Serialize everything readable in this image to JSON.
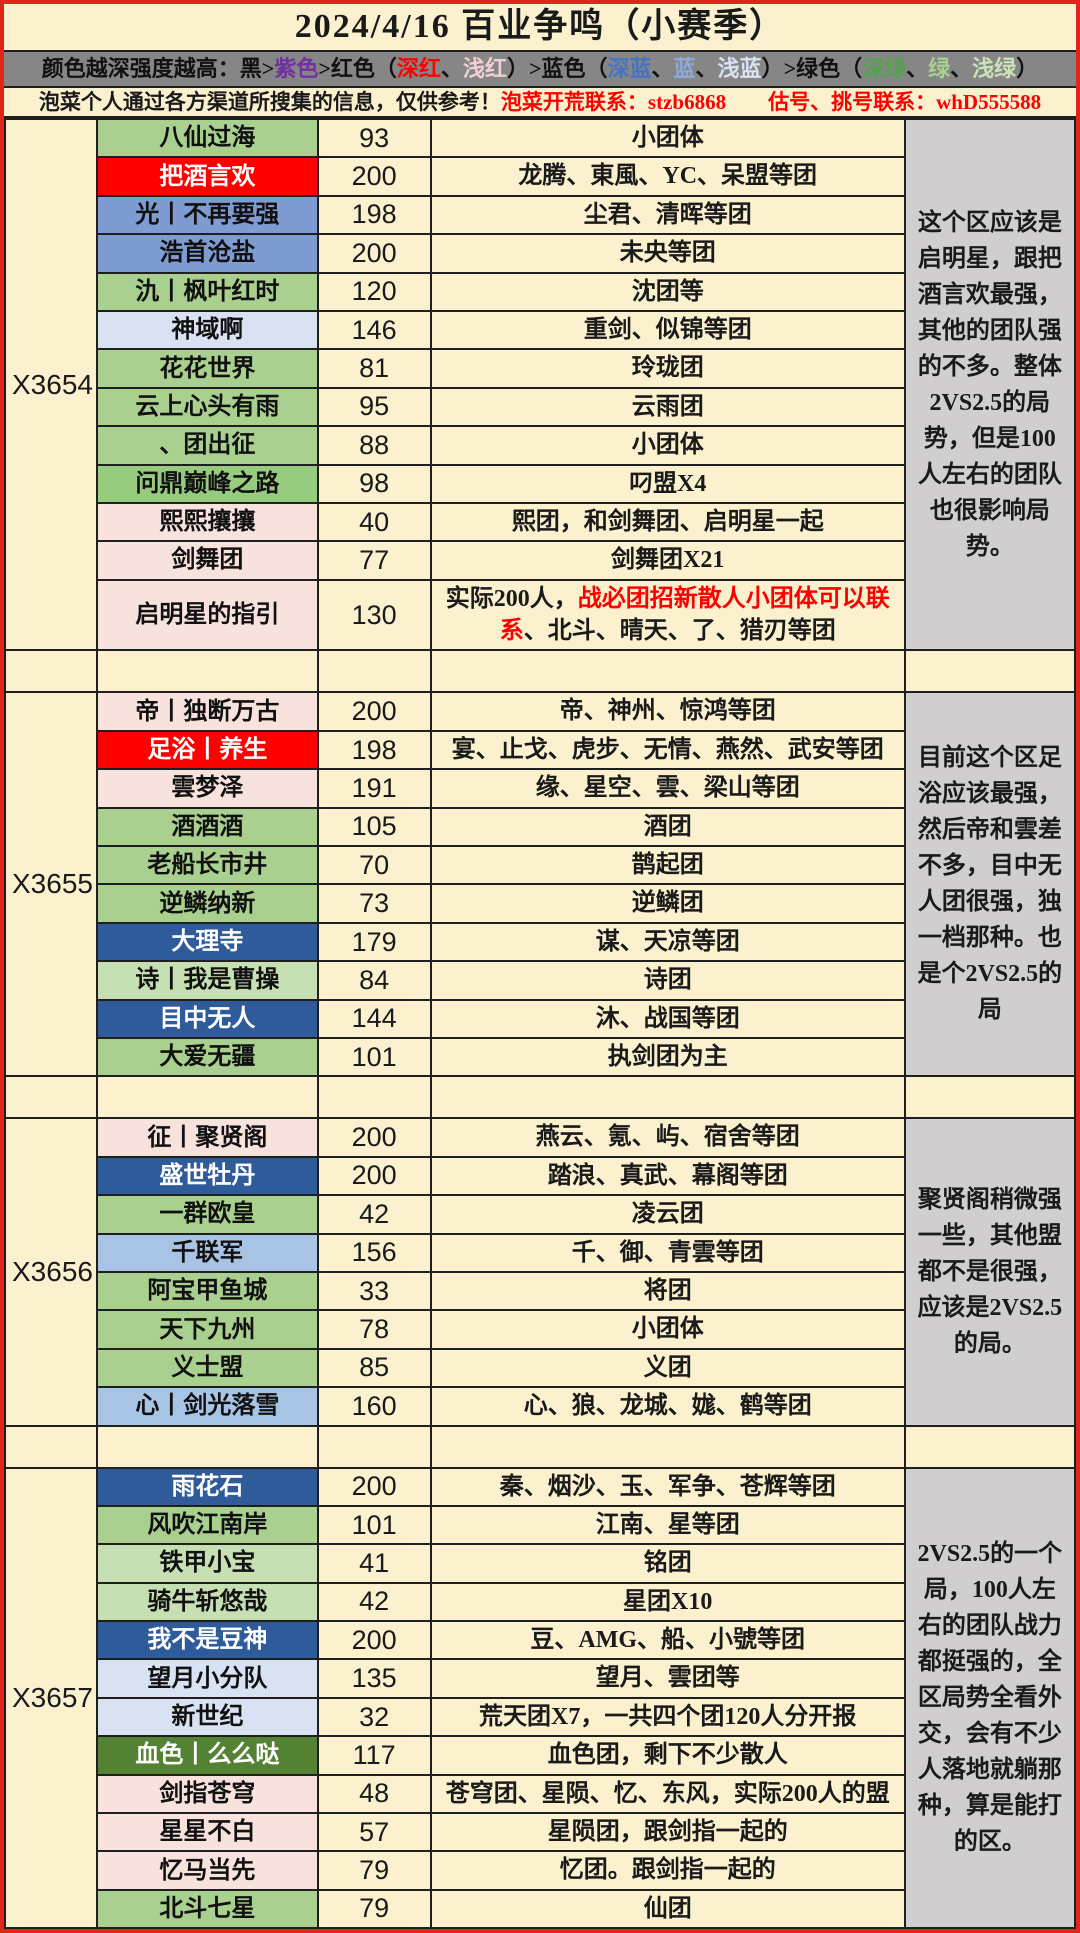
{
  "title": "2024/4/16 百业争鸣（小赛季）",
  "legend": {
    "segments": [
      {
        "t": "颜色越深强度越高：黑>",
        "c": "#111111"
      },
      {
        "t": "紫色",
        "c": "#7030A0"
      },
      {
        "t": ">红色（",
        "c": "#111111"
      },
      {
        "t": "深红",
        "c": "#FF0000"
      },
      {
        "t": "、",
        "c": "#111111"
      },
      {
        "t": "浅红",
        "c": "#F2CFD3"
      },
      {
        "t": "）>蓝色（",
        "c": "#111111"
      },
      {
        "t": "深蓝",
        "c": "#4472C4"
      },
      {
        "t": "、",
        "c": "#111111"
      },
      {
        "t": "蓝",
        "c": "#8EAADB"
      },
      {
        "t": "、",
        "c": "#111111"
      },
      {
        "t": "浅蓝",
        "c": "#D9E2F3"
      },
      {
        "t": "）>绿色（",
        "c": "#111111"
      },
      {
        "t": "深绿",
        "c": "#54A24E"
      },
      {
        "t": "、",
        "c": "#111111"
      },
      {
        "t": "绿",
        "c": "#A9D08E"
      },
      {
        "t": "、",
        "c": "#111111"
      },
      {
        "t": "浅绿",
        "c": "#CBE3B8"
      },
      {
        "t": "）",
        "c": "#111111"
      }
    ]
  },
  "notice": {
    "black": "泡菜个人通过各方渠道所搜集的信息，仅供参考！",
    "red": "泡菜开荒联系：stzb6868　　估号、挑号联系：whD555588"
  },
  "colors": {
    "page_bg": "#FBF1CF",
    "legend_bg": "#868686",
    "note_bg": "#D0CECE",
    "frame": "#E0251B",
    "grid": "#1F1F1F",
    "red_text": "#FE0000"
  },
  "palette": {
    "red": {
      "bg": "#FE0000",
      "fg": "#FFFFFF"
    },
    "blue": {
      "bg": "#7E9BD2",
      "fg": "#111111"
    },
    "lightblue": {
      "bg": "#A8C4E5",
      "fg": "#111111"
    },
    "paleblue": {
      "bg": "#D9E2F3",
      "fg": "#111111"
    },
    "darkblue": {
      "bg": "#2F5B9B",
      "fg": "#FFFFFF"
    },
    "green": {
      "bg": "#A9D08E",
      "fg": "#111111"
    },
    "medgreen": {
      "bg": "#97CB7E",
      "fg": "#111111"
    },
    "palegreen": {
      "bg": "#C6E0B4",
      "fg": "#111111"
    },
    "darkgreen": {
      "bg": "#548235",
      "fg": "#FFFFFF"
    },
    "pink": {
      "bg": "#F8E2DE",
      "fg": "#111111"
    }
  },
  "sections": [
    {
      "server": "X3654",
      "note": "这个区应该是启明星，跟把酒言欢最强，其他的团队强的不多。整体2VS2.5的局势，但是100人左右的团队也很影响局势。",
      "rows": [
        {
          "name": "八仙过海",
          "color": "green",
          "count": "93",
          "desc": "小团体"
        },
        {
          "name": "把酒言欢",
          "color": "red",
          "count": "200",
          "desc": "龙腾、東風、YC、呆盟等团"
        },
        {
          "name": "光丨不再要强",
          "color": "blue",
          "count": "198",
          "desc": "尘君、清晖等团"
        },
        {
          "name": "浩首沧盐",
          "color": "blue",
          "count": "200",
          "desc": "未央等团"
        },
        {
          "name": "氿丨枫叶红时",
          "color": "green",
          "count": "120",
          "desc": "沈团等"
        },
        {
          "name": "神域啊",
          "color": "paleblue",
          "count": "146",
          "desc": "重剑、似锦等团"
        },
        {
          "name": "花花世界",
          "color": "green",
          "count": "81",
          "desc": "玲珑团"
        },
        {
          "name": "云上心头有雨",
          "color": "green",
          "count": "95",
          "desc": "云雨团"
        },
        {
          "name": "、团出征",
          "color": "green",
          "count": "88",
          "desc": "小团体"
        },
        {
          "name": "问鼎巅峰之路",
          "color": "medgreen",
          "count": "98",
          "desc": "叼盟X4"
        },
        {
          "name": "熙熙攘攘",
          "color": "pink",
          "count": "40",
          "desc": "熙团，和剑舞团、启明星一起"
        },
        {
          "name": "剑舞团",
          "color": "pink",
          "count": "77",
          "desc": "剑舞团X21"
        },
        {
          "name": "启明星的指引",
          "color": "pink",
          "count": "130",
          "desc": [
            {
              "t": "实际200人，",
              "c": "black"
            },
            {
              "t": "战必团招新散人小团体可以联系",
              "c": "red"
            },
            {
              "t": "、北斗、晴天、了、猎刃等团",
              "c": "black"
            }
          ]
        }
      ]
    },
    {
      "server": "X3655",
      "note": "目前这个区足浴应该最强，然后帝和雲差不多，目中无人团很强，独一档那种。也是个2VS2.5的局",
      "rows": [
        {
          "name": "帝丨独断万古",
          "color": "pink",
          "count": "200",
          "desc": "帝、神州、惊鸿等团"
        },
        {
          "name": "足浴丨养生",
          "color": "red",
          "count": "198",
          "desc": "宴、止戈、虎步、无情、燕然、武安等团"
        },
        {
          "name": "雲梦泽",
          "color": "pink",
          "count": "191",
          "desc": "缘、星空、雲、梁山等团"
        },
        {
          "name": "酒酒酒",
          "color": "green",
          "count": "105",
          "desc": "酒团"
        },
        {
          "name": "老船长市井",
          "color": "green",
          "count": "70",
          "desc": "鹊起团"
        },
        {
          "name": "逆鳞纳新",
          "color": "green",
          "count": "73",
          "desc": "逆鳞团"
        },
        {
          "name": "大理寺",
          "color": "darkblue",
          "count": "179",
          "desc": "谋、天凉等团"
        },
        {
          "name": "诗丨我是曹操",
          "color": "palegreen",
          "count": "84",
          "desc": "诗团"
        },
        {
          "name": "目中无人",
          "color": "darkblue",
          "count": "144",
          "desc": "沐、战国等团"
        },
        {
          "name": "大爱无疆",
          "color": "green",
          "count": "101",
          "desc": "执剑团为主"
        }
      ]
    },
    {
      "server": "X3656",
      "note": "聚贤阁稍微强一些，其他盟都不是很强，应该是2VS2.5的局。",
      "rows": [
        {
          "name": "征丨聚贤阁",
          "color": "pink",
          "count": "200",
          "desc": "燕云、氪、屿、宿舍等团"
        },
        {
          "name": "盛世牡丹",
          "color": "darkblue",
          "count": "200",
          "desc": "踏浪、真武、幕阁等团"
        },
        {
          "name": "一群欧皇",
          "color": "green",
          "count": "42",
          "desc": "凌云团"
        },
        {
          "name": "千联军",
          "color": "lightblue",
          "count": "156",
          "desc": "千、御、青雲等团"
        },
        {
          "name": "阿宝甲鱼城",
          "color": "green",
          "count": "33",
          "desc": "将团"
        },
        {
          "name": "天下九州",
          "color": "green",
          "count": "78",
          "desc": "小团体"
        },
        {
          "name": "义士盟",
          "color": "green",
          "count": "85",
          "desc": "义团"
        },
        {
          "name": "心丨剑光落雪",
          "color": "lightblue",
          "count": "160",
          "desc": "心、狼、龙城、娏、鹤等团"
        }
      ]
    },
    {
      "server": "X3657",
      "note": "2VS2.5的一个局，100人左右的团队战力都挺强的，全区局势全看外交，会有不少人落地就躺那种，算是能打的区。",
      "rows": [
        {
          "name": "雨花石",
          "color": "darkblue",
          "count": "200",
          "desc": "秦、烟沙、玉、军争、苍辉等团"
        },
        {
          "name": "风吹江南岸",
          "color": "green",
          "count": "101",
          "desc": "江南、星等团"
        },
        {
          "name": "铁甲小宝",
          "color": "palegreen",
          "count": "41",
          "desc": "铭团"
        },
        {
          "name": "骑牛斩悠哉",
          "color": "palegreen",
          "count": "42",
          "desc": "星团X10"
        },
        {
          "name": "我不是豆神",
          "color": "darkblue",
          "count": "200",
          "desc": "豆、AMG、船、小號等团"
        },
        {
          "name": "望月小分队",
          "color": "paleblue",
          "count": "135",
          "desc": "望月、雲团等"
        },
        {
          "name": "新世纪",
          "color": "paleblue",
          "count": "32",
          "desc": "荒天团X7，一共四个团120人分开报"
        },
        {
          "name": "血色丨么么哒",
          "color": "darkgreen",
          "count": "117",
          "desc": "血色团，剩下不少散人"
        },
        {
          "name": "剑指苍穹",
          "color": "pink",
          "count": "48",
          "desc": "苍穹团、星陨、忆、东风，实际200人的盟"
        },
        {
          "name": "星星不白",
          "color": "pink",
          "count": "57",
          "desc": "星陨团，跟剑指一起的"
        },
        {
          "name": "忆马当先",
          "color": "pink",
          "count": "79",
          "desc": "忆团。跟剑指一起的"
        },
        {
          "name": "北斗七星",
          "color": "green",
          "count": "79",
          "desc": "仙团"
        }
      ]
    }
  ]
}
